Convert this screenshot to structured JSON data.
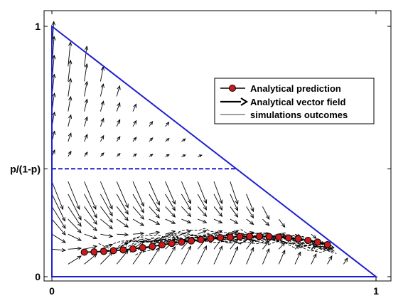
{
  "chart_data": {
    "type": "scatter",
    "title": "",
    "xlabel": "",
    "ylabel": "",
    "xlim": [
      0,
      1
    ],
    "ylim": [
      0,
      1
    ],
    "x_ticks": [
      {
        "value": 0,
        "label": "0"
      },
      {
        "value": 1,
        "label": "1"
      }
    ],
    "y_ticks": [
      {
        "value": 0,
        "label": "0"
      },
      {
        "value": 0.431,
        "label": "p/(1-p)"
      },
      {
        "value": 1,
        "label": "1"
      }
    ],
    "grid": false,
    "legend_position": "top-right",
    "simplex_boundary": {
      "vertices": [
        [
          0,
          0
        ],
        [
          0,
          1
        ],
        [
          1,
          0
        ]
      ],
      "color": "#1f1fd0"
    },
    "threshold_line": {
      "y": 0.431,
      "x_end": 0.569,
      "style": "dashed",
      "color": "#1f1fd0"
    },
    "series": [
      {
        "name": "Analytical prediction",
        "style": "line-with-circle-markers",
        "marker_color": "#cc1a1a",
        "x": [
          0.1,
          0.13,
          0.16,
          0.19,
          0.22,
          0.25,
          0.28,
          0.31,
          0.34,
          0.37,
          0.4,
          0.43,
          0.46,
          0.49,
          0.52,
          0.55,
          0.58,
          0.61,
          0.64,
          0.67,
          0.7,
          0.73,
          0.76,
          0.79,
          0.82,
          0.85
        ],
        "y": [
          0.098,
          0.099,
          0.101,
          0.104,
          0.107,
          0.111,
          0.116,
          0.121,
          0.127,
          0.133,
          0.138,
          0.143,
          0.148,
          0.152,
          0.156,
          0.158,
          0.16,
          0.161,
          0.161,
          0.16,
          0.158,
          0.155,
          0.151,
          0.145,
          0.138,
          0.128
        ]
      },
      {
        "name": "Analytical vector field",
        "style": "arrows",
        "color": "#000000"
      },
      {
        "name": "simulations outcomes",
        "style": "thin-dashed-lines",
        "color": "#000000"
      }
    ]
  }
}
